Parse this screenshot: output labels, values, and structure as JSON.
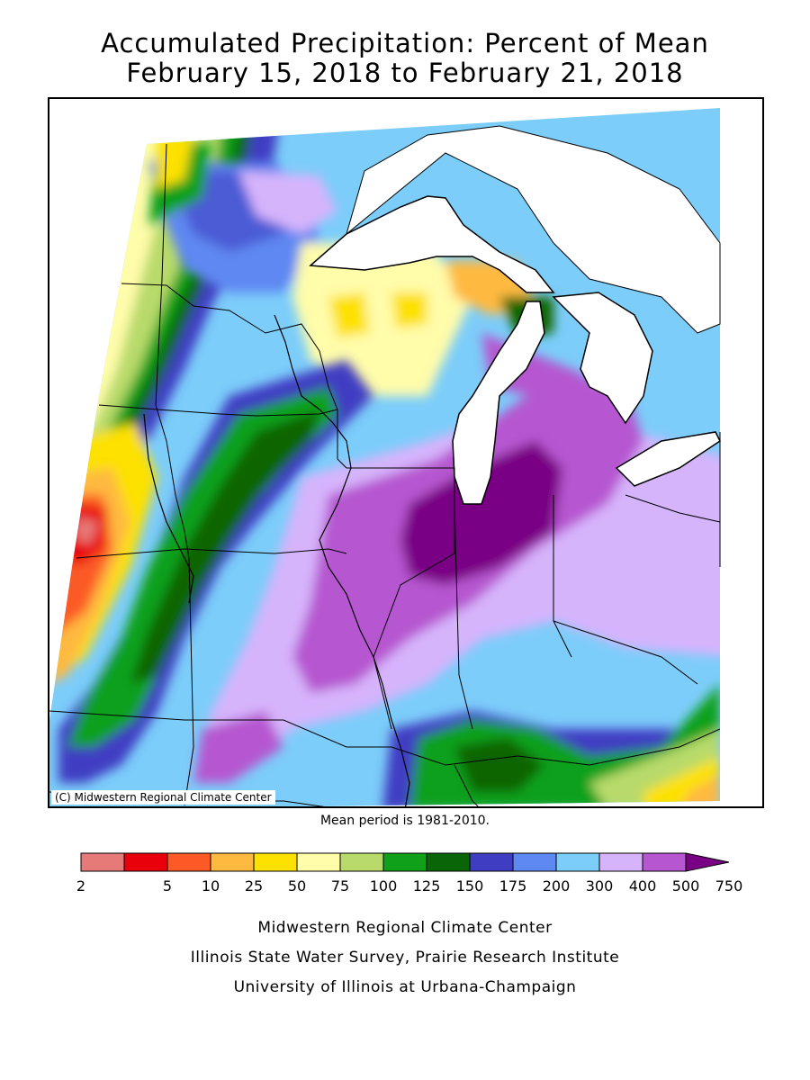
{
  "title": {
    "line1": "Accumulated Precipitation: Percent of Mean",
    "line2": "February 15, 2018 to February 21, 2018"
  },
  "map": {
    "copyright": "(C) Midwestern Regional Climate Center",
    "mean_note": "Mean period is 1981-2010.",
    "water_color": "#ffffff",
    "boundary_color": "#000000"
  },
  "legend": {
    "ticks": [
      "2",
      "5",
      "10",
      "25",
      "50",
      "75",
      "100",
      "125",
      "150",
      "175",
      "200",
      "300",
      "400",
      "500",
      "750"
    ],
    "colors": [
      "#e57a78",
      "#e8000b",
      "#fb5a26",
      "#feb941",
      "#fde100",
      "#fffcaa",
      "#b8da6a",
      "#10a01a",
      "#0a6506",
      "#3f3ec2",
      "#5e88f2",
      "#7ccdfa",
      "#d6b4fc",
      "#b656d0",
      "#790084"
    ],
    "overflow_arrow": true
  },
  "footer": {
    "line1": "Midwestern Regional Climate Center",
    "line2": "Illinois State Water Survey, Prairie Research Institute",
    "line3": "University of Illinois at Urbana-Champaign"
  }
}
